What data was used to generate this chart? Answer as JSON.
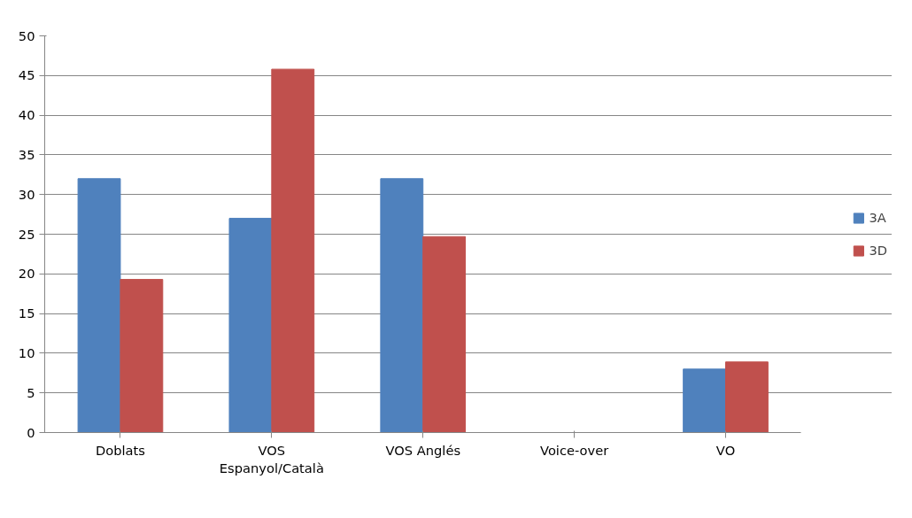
{
  "chart_data": {
    "type": "bar",
    "categories": [
      "Doblats",
      "VOS\nEspanyol/Català",
      "VOS Anglés",
      "Voice-over",
      "VO"
    ],
    "series": [
      {
        "name": "3A",
        "color": "#4f81bd",
        "values": [
          32,
          27,
          32,
          0,
          8
        ]
      },
      {
        "name": "3D",
        "color": "#c0504d",
        "values": [
          19.3,
          45.8,
          24.7,
          0,
          8.9
        ]
      }
    ],
    "ylim": [
      0,
      50
    ],
    "yticks": [
      0,
      5,
      10,
      15,
      20,
      25,
      30,
      35,
      40,
      45,
      50
    ],
    "grid": "y",
    "legend": "right"
  }
}
